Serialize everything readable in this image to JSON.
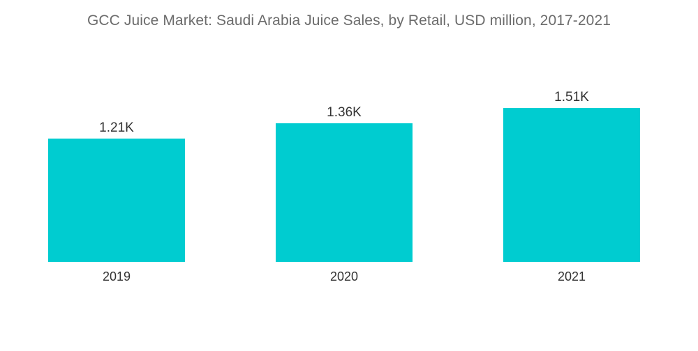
{
  "chart_data": {
    "type": "bar",
    "title": "GCC Juice Market: Saudi Arabia Juice Sales, by Retail, USD million, 2017-2021",
    "categories": [
      "2019",
      "2020",
      "2021"
    ],
    "values": [
      1210,
      1360,
      1510
    ],
    "value_labels": [
      "1.21K",
      "1.36K",
      "1.51K"
    ],
    "xlabel": "",
    "ylabel": "",
    "ylim": [
      0,
      2570
    ],
    "grid": false,
    "legend": "none",
    "bar_color": "#00CCD0"
  }
}
